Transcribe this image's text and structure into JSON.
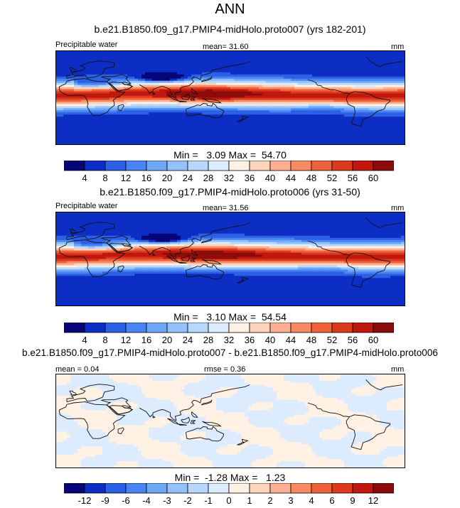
{
  "figure": {
    "title": "ANN"
  },
  "panels": [
    {
      "id": "p1",
      "case_title": "b.e21.B1850.f09_g17.PMIP4-midHolo.proto007 (yrs 182-201)",
      "left_label": "Precipitable water",
      "mean_text": "mean=  31.60",
      "units": "mm",
      "minmax_text": "Min =   3.09 Max =  54.70"
    },
    {
      "id": "p2",
      "case_title": "b.e21.B1850.f09_g17.PMIP4-midHolo.proto006 (yrs 31-50)",
      "left_label": "Precipitable water",
      "mean_text": "mean=  31.56",
      "units": "mm",
      "minmax_text": "Min =   3.10 Max =  54.54"
    },
    {
      "id": "p3",
      "case_title": "b.e21.B1850.f09_g17.PMIP4-midHolo.proto007 - b.e21.B1850.f09_g17.PMIP4-midHolo.proto006",
      "mean_text": "mean =   0.04",
      "rmse_text": "rmse =   0.36",
      "units": "mm",
      "minmax_text": "Min =  -1.28 Max =   1.23"
    }
  ],
  "chart_data": [
    {
      "type": "heatmap",
      "title": "b.e21.B1850.f09_g17.PMIP4-midHolo.proto007 (yrs 182-201)",
      "variable": "Precipitable water",
      "units": "mm",
      "mean": 31.6,
      "min": 3.09,
      "max": 54.7,
      "colorbar": {
        "levels": [
          4,
          8,
          12,
          16,
          20,
          24,
          28,
          32,
          36,
          40,
          44,
          48,
          52,
          56,
          60
        ],
        "colors": [
          "#060679",
          "#0d2ec4",
          "#2b60e6",
          "#4884f2",
          "#6ea6f8",
          "#93c2fa",
          "#b7d7fc",
          "#dcebfe",
          "#fff1e3",
          "#fdd3bc",
          "#fcb091",
          "#f78a62",
          "#ef6138",
          "#dc3a1c",
          "#c0180e",
          "#8c0b0b"
        ]
      }
    },
    {
      "type": "heatmap",
      "title": "b.e21.B1850.f09_g17.PMIP4-midHolo.proto006 (yrs 31-50)",
      "variable": "Precipitable water",
      "units": "mm",
      "mean": 31.56,
      "min": 3.1,
      "max": 54.54,
      "colorbar": {
        "levels": [
          4,
          8,
          12,
          16,
          20,
          24,
          28,
          32,
          36,
          40,
          44,
          48,
          52,
          56,
          60
        ],
        "colors": [
          "#060679",
          "#0d2ec4",
          "#2b60e6",
          "#4884f2",
          "#6ea6f8",
          "#93c2fa",
          "#b7d7fc",
          "#dcebfe",
          "#fff1e3",
          "#fdd3bc",
          "#fcb091",
          "#f78a62",
          "#ef6138",
          "#dc3a1c",
          "#c0180e",
          "#8c0b0b"
        ]
      }
    },
    {
      "type": "heatmap",
      "title": "b.e21.B1850.f09_g17.PMIP4-midHolo.proto007 - b.e21.B1850.f09_g17.PMIP4-midHolo.proto006",
      "units": "mm",
      "mean": 0.04,
      "rmse": 0.36,
      "min": -1.28,
      "max": 1.23,
      "colorbar": {
        "levels": [
          "-12",
          "-9",
          "-6",
          "-4",
          "-3",
          "-2",
          "-1",
          "0",
          "1",
          "2",
          "3",
          "4",
          "6",
          "9",
          "12"
        ],
        "colors": [
          "#060679",
          "#0d2ec4",
          "#2b60e6",
          "#4884f2",
          "#6ea6f8",
          "#93c2fa",
          "#b7d7fc",
          "#dcebfe",
          "#fff1e3",
          "#fdd3bc",
          "#fcb091",
          "#f78a62",
          "#ef6138",
          "#dc3a1c",
          "#c0180e",
          "#8c0b0b"
        ]
      }
    }
  ]
}
